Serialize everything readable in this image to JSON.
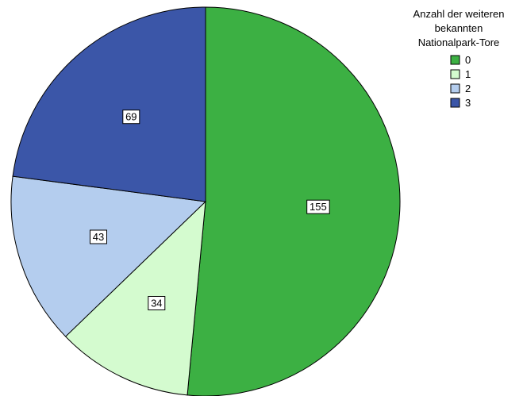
{
  "chart_data": {
    "type": "pie",
    "legend": {
      "title_lines": [
        "Anzahl der weiteren",
        "bekannten",
        "Nationalpark-Tore"
      ],
      "placement": "top-right"
    },
    "categories": [
      "0",
      "1",
      "2",
      "3"
    ],
    "values": [
      155,
      34,
      43,
      69
    ],
    "colors": [
      "#3cb043",
      "#d4fbcf",
      "#b4cdee",
      "#3b56a8"
    ],
    "data_labels_shown": true
  }
}
